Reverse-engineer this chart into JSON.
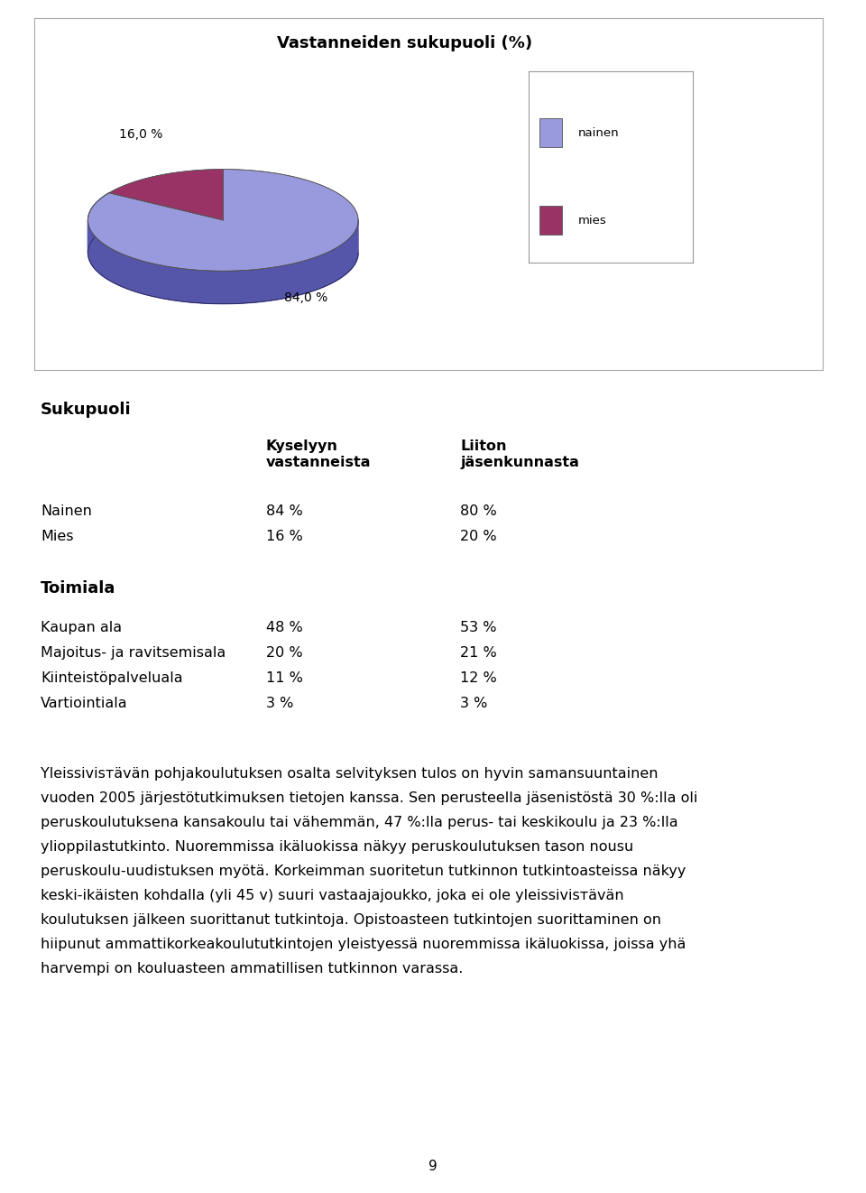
{
  "title": "Vastanneiden sukupuoli (%)",
  "pie_values": [
    84.0,
    16.0
  ],
  "pie_colors": [
    "#9999dd",
    "#993366"
  ],
  "pie_side_colors": [
    "#5555aa",
    "#661133"
  ],
  "pie_bottom_color": "#333366",
  "legend_labels": [
    "nainen",
    "mies"
  ],
  "legend_colors": [
    "#9999dd",
    "#993366"
  ],
  "sukupuoli_header": "Sukupuoli",
  "col1_header_line1": "Kyselyyn",
  "col1_header_line2": "vastanneista",
  "col2_header_line1": "Liiton",
  "col2_header_line2": "jäsenkunnasta",
  "rows_sukupuoli": [
    [
      "Nainen",
      "84 %",
      "80 %"
    ],
    [
      "Mies",
      "16 %",
      "20 %"
    ]
  ],
  "toimiala_header": "Toimiala",
  "rows_toimiala": [
    [
      "Kaupan ala",
      "48 %",
      "53 %"
    ],
    [
      "Majoitus- ja ravitsemisala",
      "20 %",
      "21 %"
    ],
    [
      "Kiinteistöpalveluala",
      "11 %",
      "12 %"
    ],
    [
      "Vartiointiala",
      "3 %",
      "3 %"
    ]
  ],
  "body_lines": [
    "Yleissivisтävän pohjakoulutuksen osalta selvityksen tulos on hyvin samansuuntainen",
    "vuoden 2005 järjestötutkimuksen tietojen kanssa. Sen perusteella jäsenistöstä 30 %:lla oli",
    "peruskoulutuksena kansakoulu tai vähemmän, 47 %:lla perus- tai keskikoulu ja 23 %:lla",
    "ylioppilastutkinto. Nuoremmissa ikäluokissa näkyy peruskoulutuksen tason nousu",
    "peruskoulu-uudistuksen myötä. Korkeimman suoritetun tutkinnon tutkintoasteissa näkyy",
    "keski-ikäisten kohdalla (yli 45 v) suuri vastaajajoukko, joka ei ole yleissivisтävän",
    "koulutuksen jälkeen suorittanut tutkintoja. Opistoasteen tutkintojen suorittaminen on",
    "hiipunut ammattikorkeakoulututkintojen yleistyessä nuoremmissa ikäluokissa, joissa yhä",
    "harvempi on kouluasteen ammatillisen tutkinnon varassa."
  ],
  "page_number": "9",
  "nainen_label": "84,0 %",
  "mies_label": "16,0 %"
}
